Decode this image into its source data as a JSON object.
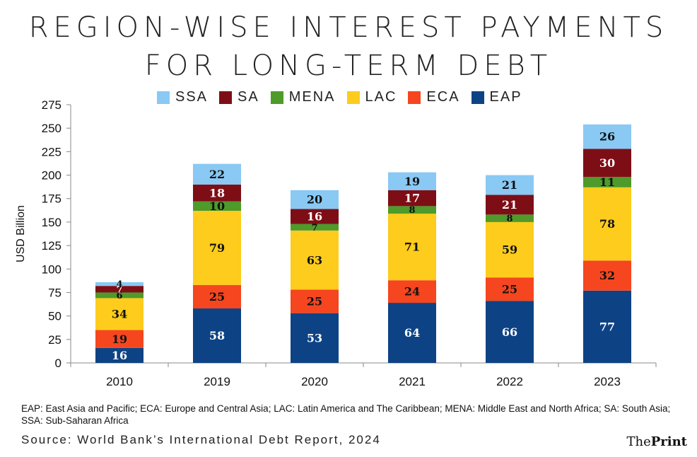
{
  "title_line1": "REGION-WISE INTEREST PAYMENTS",
  "title_line2": "FOR LONG-TERM DEBT",
  "chart_data": {
    "type": "bar",
    "stacked": true,
    "categories": [
      "2010",
      "2019",
      "2020",
      "2021",
      "2022",
      "2023"
    ],
    "ylabel": "USD Billion",
    "ylim": [
      0,
      275
    ],
    "yticks": [
      "0",
      "25",
      "50",
      "75",
      "100",
      "125",
      "150",
      "175",
      "200",
      "225",
      "250",
      "275"
    ],
    "legend_position": "top",
    "series": [
      {
        "name": "EAP",
        "color": "#0d4385",
        "values": [
          16,
          58,
          53,
          64,
          66,
          77
        ],
        "labels": [
          "16",
          "58",
          "53",
          "64",
          "66",
          "77"
        ]
      },
      {
        "name": "ECA",
        "color": "#f5461f",
        "values": [
          19,
          25,
          25,
          24,
          25,
          32
        ],
        "labels": [
          "19",
          "25",
          "25",
          "24",
          "25",
          "32"
        ]
      },
      {
        "name": "LAC",
        "color": "#fdcc1c",
        "values": [
          34,
          79,
          63,
          71,
          59,
          78
        ],
        "labels": [
          "34",
          "79",
          "63",
          "71",
          "59",
          "78"
        ]
      },
      {
        "name": "MENA",
        "color": "#4e9a2a",
        "values": [
          6,
          10,
          7,
          8,
          8,
          11
        ],
        "labels": [
          "6",
          "10",
          "7",
          "8",
          "8",
          "11"
        ]
      },
      {
        "name": "SA",
        "color": "#7e0e16",
        "values": [
          7,
          18,
          16,
          17,
          21,
          30
        ],
        "labels": [
          "7",
          "18",
          "16",
          "17",
          "21",
          "30"
        ]
      },
      {
        "name": "SSA",
        "color": "#89c9f4",
        "values": [
          4,
          22,
          20,
          19,
          21,
          26
        ],
        "labels": [
          "4",
          "22",
          "20",
          "19",
          "21",
          "26"
        ]
      }
    ],
    "legend_order": [
      "SSA",
      "SA",
      "MENA",
      "LAC",
      "ECA",
      "EAP"
    ]
  },
  "footnote": "EAP: East Asia and Pacific; ECA: Europe and Central Asia; LAC: Latin America and The Caribbean; MENA: Middle East and North Africa; SA: South Asia; SSA: Sub-Saharan Africa",
  "source": "Source: World Bank’s International Debt Report, 2024",
  "logo": {
    "part1": "The",
    "part2": "Print"
  }
}
